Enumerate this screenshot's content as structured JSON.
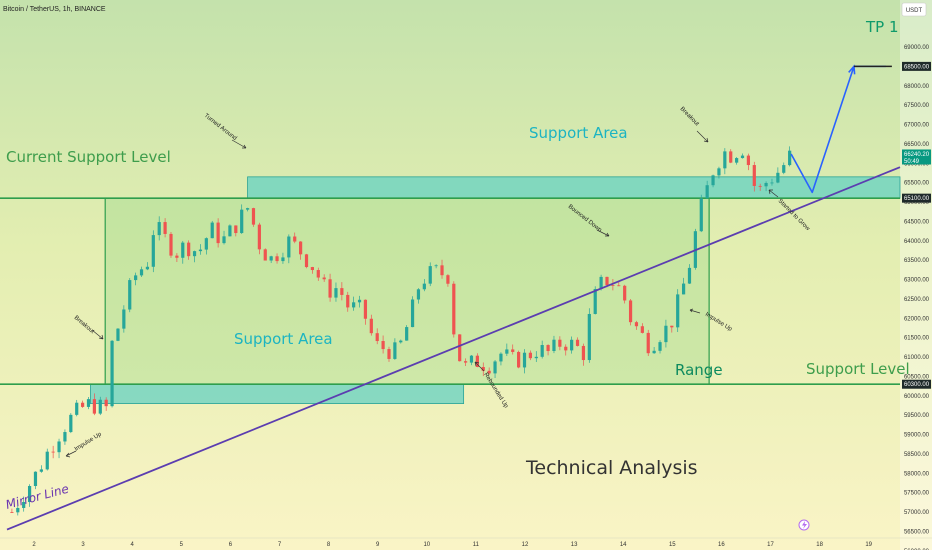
{
  "header": {
    "title": "Bitcoin / TetherUS, 1h, BINANCE",
    "currency_button": "USDT"
  },
  "colors": {
    "bull": "#26a69a",
    "bear": "#ef5350",
    "level_line": "#2e9e4c",
    "zone_fill": "#5fd0c4",
    "mirror_line": "#5b3db0",
    "projection": "#2962ff",
    "price_tag": "#089981"
  },
  "chart_data": {
    "type": "candlestick",
    "symbol": "Bitcoin / TetherUS",
    "timeframe": "1h",
    "exchange": "BINANCE",
    "x_axis": {
      "type": "date",
      "ticks": [
        "2",
        "3",
        "4",
        "5",
        "6",
        "7",
        "8",
        "9",
        "10",
        "11",
        "12",
        "13",
        "14",
        "15",
        "16",
        "17",
        "18",
        "19"
      ]
    },
    "y_axis": {
      "position": "right",
      "range": [
        55900,
        69450
      ],
      "ticks": [
        "69000.00",
        "68500.00",
        "68000.00",
        "67500.00",
        "67000.00",
        "66500.00",
        "66000.00",
        "65500.00",
        "65000.00",
        "64500.00",
        "64000.00",
        "63500.00",
        "63000.00",
        "62500.00",
        "62000.00",
        "61500.00",
        "61000.00",
        "60500.00",
        "60000.00",
        "59500.00",
        "59000.00",
        "58500.00",
        "58000.00",
        "57500.00",
        "57000.00",
        "56500.00",
        "56000.00"
      ]
    },
    "price_path": [
      {
        "x": 1.55,
        "y": 57000
      },
      {
        "x": 1.8,
        "y": 57500
      },
      {
        "x": 2.05,
        "y": 58000
      },
      {
        "x": 2.3,
        "y": 58600
      },
      {
        "x": 2.55,
        "y": 59100
      },
      {
        "x": 2.8,
        "y": 59500
      },
      {
        "x": 3.0,
        "y": 59700
      },
      {
        "x": 3.15,
        "y": 59800
      },
      {
        "x": 3.35,
        "y": 59700
      },
      {
        "x": 3.45,
        "y": 59300
      },
      {
        "x": 3.55,
        "y": 61200
      },
      {
        "x": 3.75,
        "y": 61900
      },
      {
        "x": 3.9,
        "y": 62600
      },
      {
        "x": 4.1,
        "y": 63200
      },
      {
        "x": 4.3,
        "y": 63400
      },
      {
        "x": 4.45,
        "y": 64400
      },
      {
        "x": 4.7,
        "y": 64000
      },
      {
        "x": 4.9,
        "y": 63700
      },
      {
        "x": 5.1,
        "y": 63900
      },
      {
        "x": 5.35,
        "y": 63700
      },
      {
        "x": 5.6,
        "y": 64300
      },
      {
        "x": 5.85,
        "y": 64000
      },
      {
        "x": 6.1,
        "y": 64400
      },
      {
        "x": 6.38,
        "y": 64900
      },
      {
        "x": 6.55,
        "y": 64000
      },
      {
        "x": 6.8,
        "y": 63500
      },
      {
        "x": 7.05,
        "y": 63800
      },
      {
        "x": 7.2,
        "y": 64000
      },
      {
        "x": 7.45,
        "y": 63700
      },
      {
        "x": 7.7,
        "y": 63300
      },
      {
        "x": 7.95,
        "y": 62700
      },
      {
        "x": 8.2,
        "y": 62800
      },
      {
        "x": 8.4,
        "y": 62300
      },
      {
        "x": 8.7,
        "y": 62200
      },
      {
        "x": 8.95,
        "y": 61300
      },
      {
        "x": 9.2,
        "y": 61200
      },
      {
        "x": 9.4,
        "y": 61100
      },
      {
        "x": 9.55,
        "y": 61600
      },
      {
        "x": 9.7,
        "y": 62200
      },
      {
        "x": 9.85,
        "y": 62900
      },
      {
        "x": 10.0,
        "y": 63100
      },
      {
        "x": 10.2,
        "y": 63200
      },
      {
        "x": 10.45,
        "y": 63100
      },
      {
        "x": 10.58,
        "y": 61300
      },
      {
        "x": 10.75,
        "y": 60700
      },
      {
        "x": 11.0,
        "y": 60900
      },
      {
        "x": 11.25,
        "y": 60800
      },
      {
        "x": 11.5,
        "y": 61100
      },
      {
        "x": 11.75,
        "y": 60900
      },
      {
        "x": 12.0,
        "y": 61000
      },
      {
        "x": 12.25,
        "y": 61200
      },
      {
        "x": 12.5,
        "y": 61100
      },
      {
        "x": 12.75,
        "y": 61400
      },
      {
        "x": 13.0,
        "y": 61300
      },
      {
        "x": 13.2,
        "y": 61100
      },
      {
        "x": 13.35,
        "y": 62300
      },
      {
        "x": 13.5,
        "y": 62800
      },
      {
        "x": 13.65,
        "y": 63000
      },
      {
        "x": 13.85,
        "y": 62900
      },
      {
        "x": 14.0,
        "y": 62600
      },
      {
        "x": 14.15,
        "y": 62000
      },
      {
        "x": 14.35,
        "y": 61600
      },
      {
        "x": 14.55,
        "y": 61300
      },
      {
        "x": 14.75,
        "y": 61600
      },
      {
        "x": 14.95,
        "y": 61800
      },
      {
        "x": 15.15,
        "y": 62500
      },
      {
        "x": 15.35,
        "y": 63400
      },
      {
        "x": 15.55,
        "y": 64700
      },
      {
        "x": 15.7,
        "y": 65300
      },
      {
        "x": 15.85,
        "y": 65900
      },
      {
        "x": 16.05,
        "y": 66300
      },
      {
        "x": 16.25,
        "y": 66200
      },
      {
        "x": 16.4,
        "y": 66500
      },
      {
        "x": 16.55,
        "y": 66000
      },
      {
        "x": 16.72,
        "y": 65200
      },
      {
        "x": 16.9,
        "y": 65500
      },
      {
        "x": 17.1,
        "y": 65700
      },
      {
        "x": 17.3,
        "y": 66000
      },
      {
        "x": 17.42,
        "y": 66240
      }
    ],
    "levels": [
      {
        "label": "Current Support Level",
        "price": 65100
      },
      {
        "label": "Support Level",
        "price": 60300
      }
    ],
    "zones": [
      {
        "label": "Support Area",
        "x_start": 6.35,
        "x_end": 20.0,
        "y_low": 65100,
        "y_high": 65650
      },
      {
        "label": "Support Area",
        "x_start": 3.15,
        "x_end": 10.75,
        "y_low": 59800,
        "y_high": 60300
      },
      {
        "label": "Range",
        "x_start": 3.45,
        "x_end": 15.75,
        "y_low": 60300,
        "y_high": 65100
      }
    ],
    "mirror_line": {
      "label": "Mirror Line",
      "from": {
        "x": 1.45,
        "y": 56550
      },
      "to": {
        "x": 20.0,
        "y": 65900
      }
    },
    "projection": [
      {
        "x": 17.42,
        "y": 66240
      },
      {
        "x": 17.85,
        "y": 65250
      },
      {
        "x": 18.7,
        "y": 68500
      },
      {
        "x": 19.35,
        "y": 68500
      }
    ],
    "annotations": {
      "breakout_1": "Breakout",
      "breakout_2": "Breakout",
      "turned_around": "Turned Around",
      "bounced_down": "Bounced Down",
      "impulse_up_1": "Impulse Up",
      "impulse_up_2": "Impulse Up",
      "rebounded_up": "Rebounded Up",
      "started_to_grow": "Started to Grow",
      "tp1": "TP 1",
      "range": "Range",
      "support_area_top": "Support Area",
      "support_area_bottom": "Support Area",
      "current_support_level": "Current Support Level",
      "support_level": "Support Level",
      "mirror_line": "Mirror Line",
      "technical_analysis": "Technical Analysis"
    },
    "price_tags": [
      {
        "price": 68500,
        "label": "68500.00",
        "kind": "dark"
      },
      {
        "price": 66240,
        "label": "66240.20",
        "sub": "50:49",
        "kind": "green"
      },
      {
        "price": 65100,
        "label": "65100.00",
        "kind": "dark"
      },
      {
        "price": 60300,
        "label": "60300.00",
        "kind": "dark"
      }
    ],
    "grid": false
  }
}
